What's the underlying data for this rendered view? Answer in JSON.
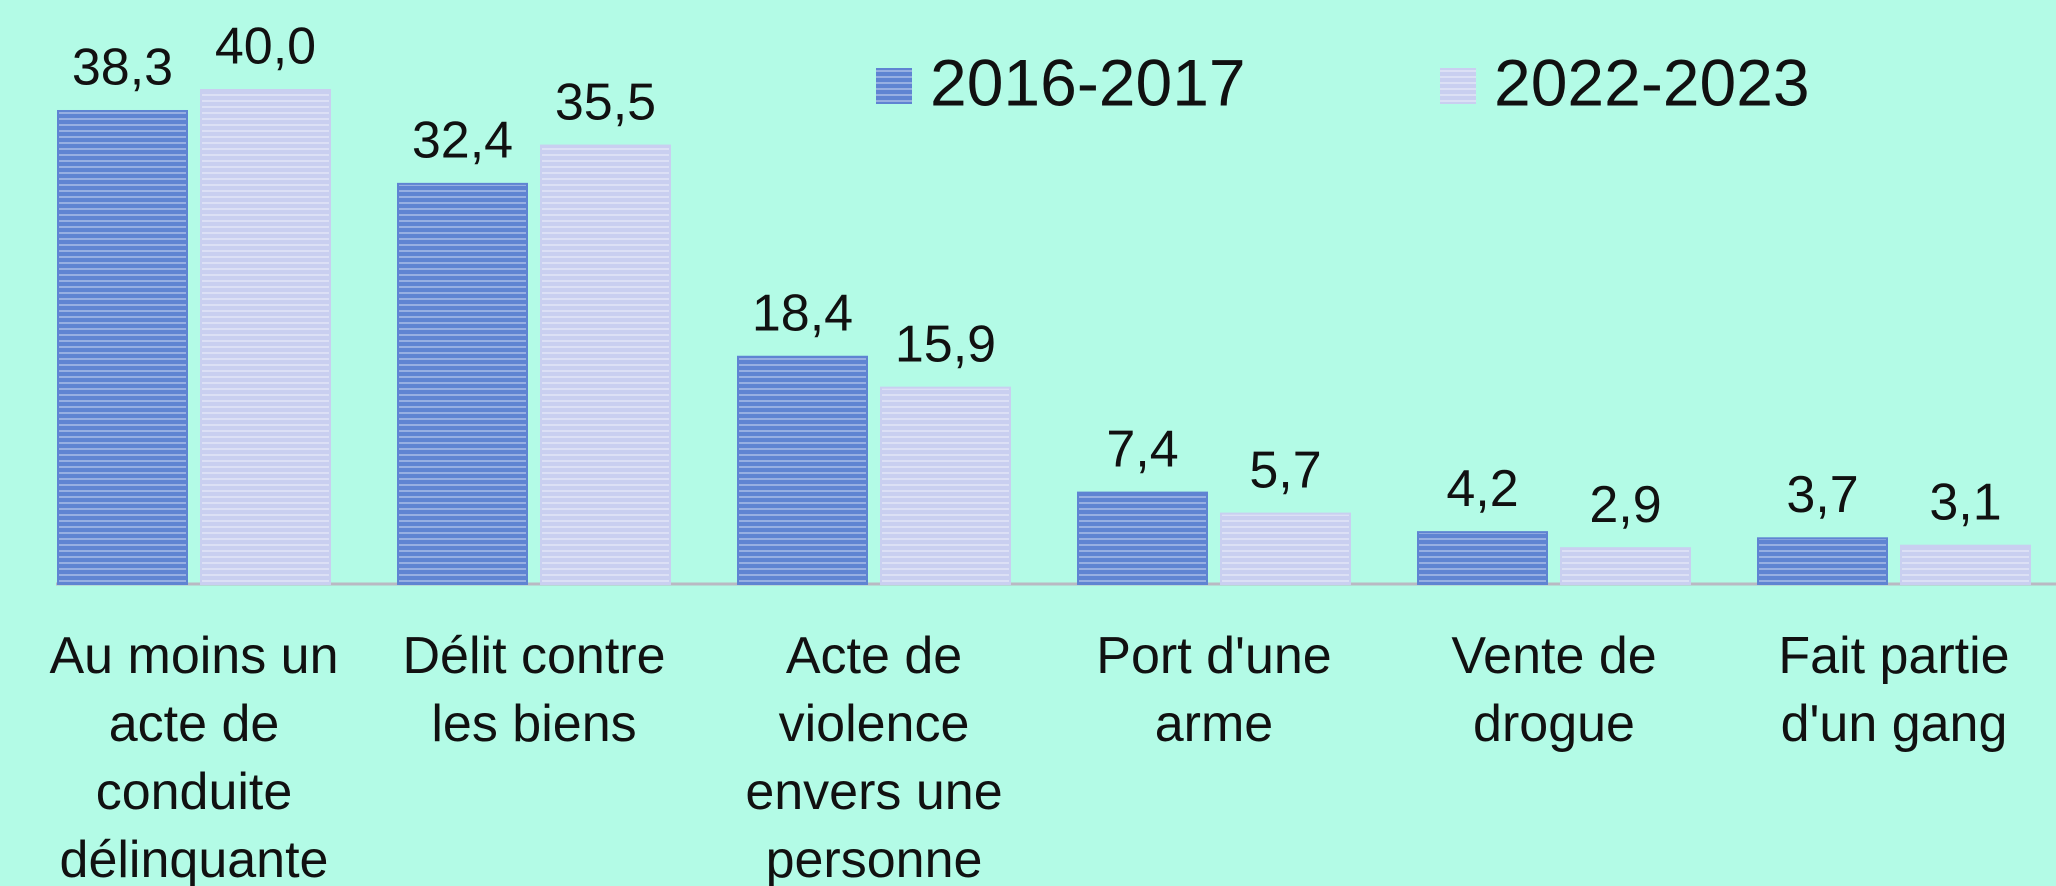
{
  "chart_data": {
    "type": "bar",
    "categories": [
      "Au moins un acte de conduite délinquante",
      "Délit contre les biens",
      "Acte de violence envers une personne",
      "Port d'une arme",
      "Vente de drogue",
      "Fait partie d'un gang"
    ],
    "series": [
      {
        "name": "2016-2017",
        "color": "#5f84d2",
        "values": [
          38.3,
          32.4,
          18.4,
          7.4,
          4.2,
          3.7
        ],
        "value_labels": [
          "38,3",
          "32,4",
          "18,4",
          "7,4",
          "4,2",
          "3,7"
        ]
      },
      {
        "name": "2022-2023",
        "color": "#c9cff0",
        "values": [
          40.0,
          35.5,
          15.9,
          5.7,
          2.9,
          3.1
        ],
        "value_labels": [
          "40,0",
          "35,5",
          "15,9",
          "5,7",
          "2,9",
          "3,1"
        ]
      }
    ],
    "ylim": [
      0,
      40
    ],
    "legend": "top"
  }
}
